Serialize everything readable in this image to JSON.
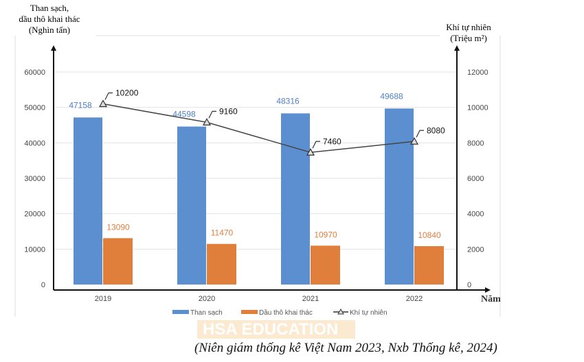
{
  "chart_data": {
    "type": "bar+line",
    "categories": [
      "2019",
      "2020",
      "2021",
      "2022"
    ],
    "series": [
      {
        "name": "Than sạch",
        "type": "bar",
        "axis": "left",
        "color": "#5b8fd0",
        "label_color": "#4f7fc4",
        "values": [
          47158,
          44598,
          48316,
          49688
        ]
      },
      {
        "name": "Dầu thô khai thác",
        "type": "bar",
        "axis": "left",
        "color": "#e07e3c",
        "label_color": "#e07e3c",
        "values": [
          13090,
          11470,
          10970,
          10840
        ]
      },
      {
        "name": "Khí tự nhiên",
        "type": "line",
        "axis": "right",
        "color": "#444444",
        "marker": "triangle",
        "values": [
          10200,
          9160,
          7460,
          8080
        ]
      }
    ],
    "left_axis": {
      "title_lines": [
        "Than sạch,",
        "dầu thô khai thác",
        "(Nghìn tấn)"
      ],
      "ylim": [
        0,
        60000
      ],
      "ticks": [
        0,
        10000,
        20000,
        30000,
        40000,
        50000,
        60000
      ]
    },
    "right_axis": {
      "title_lines": [
        "Khí tự nhiên",
        "(Triệu m²)"
      ],
      "ylim": [
        0,
        12000
      ],
      "ticks": [
        0,
        2000,
        4000,
        6000,
        8000,
        10000,
        12000
      ]
    },
    "xlabel": "Năm",
    "grid": true,
    "legend_position": "bottom"
  },
  "watermark": "HSA EDUCATION",
  "source": "(Niên giám thống kê Việt Nam 2023, Nxb Thống kê, 2024)"
}
